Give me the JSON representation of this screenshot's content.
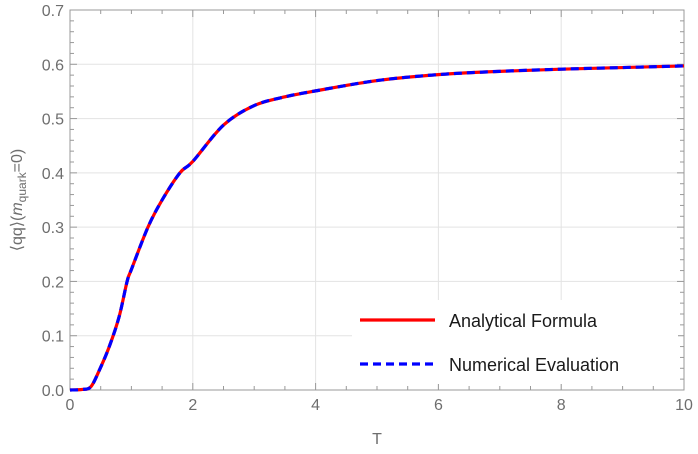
{
  "chart_data": {
    "type": "line",
    "title": "",
    "xlabel": "T",
    "ylabel": "⟨qq⟩(m_quark=0)",
    "ylabel_parts": {
      "prefix": "⟨qq⟩(",
      "italic": "m",
      "subscript": "quark",
      "suffix": "=0)"
    },
    "xlim": [
      0,
      10
    ],
    "ylim": [
      0,
      0.7
    ],
    "x_ticks": [
      "0",
      "2",
      "4",
      "6",
      "8",
      "10"
    ],
    "y_ticks": [
      "0.0",
      "0.1",
      "0.2",
      "0.3",
      "0.4",
      "0.5",
      "0.6",
      "0.7"
    ],
    "grid": true,
    "legend_position": "lower right",
    "series": [
      {
        "name": "Analytical Formula",
        "color": "#ff0000",
        "style": "solid",
        "x": [
          0,
          0.2,
          0.34,
          0.48,
          0.64,
          0.8,
          0.93,
          1.0,
          1.27,
          1.5,
          1.79,
          2.0,
          2.5,
          3.0,
          3.5,
          4.0,
          5.0,
          6.0,
          7.0,
          8.0,
          9.0,
          10.0
        ],
        "y": [
          0,
          0.001,
          0.006,
          0.037,
          0.08,
          0.135,
          0.2,
          0.222,
          0.3,
          0.35,
          0.4,
          0.421,
          0.488,
          0.524,
          0.54,
          0.551,
          0.57,
          0.581,
          0.587,
          0.591,
          0.594,
          0.597
        ]
      },
      {
        "name": "Numerical Evaluation",
        "color": "#0000ff",
        "style": "dashed",
        "x": [
          0,
          0.2,
          0.34,
          0.48,
          0.64,
          0.8,
          0.93,
          1.0,
          1.27,
          1.5,
          1.79,
          2.0,
          2.5,
          3.0,
          3.5,
          4.0,
          5.0,
          6.0,
          7.0,
          8.0,
          9.0,
          10.0
        ],
        "y": [
          0,
          0.001,
          0.006,
          0.037,
          0.08,
          0.135,
          0.2,
          0.222,
          0.3,
          0.35,
          0.4,
          0.421,
          0.488,
          0.524,
          0.54,
          0.551,
          0.57,
          0.581,
          0.587,
          0.591,
          0.594,
          0.597
        ]
      }
    ]
  },
  "colors": {
    "frame": "#999999",
    "grid": "#e3e3e3",
    "tick_label": "#6e6e6e"
  }
}
